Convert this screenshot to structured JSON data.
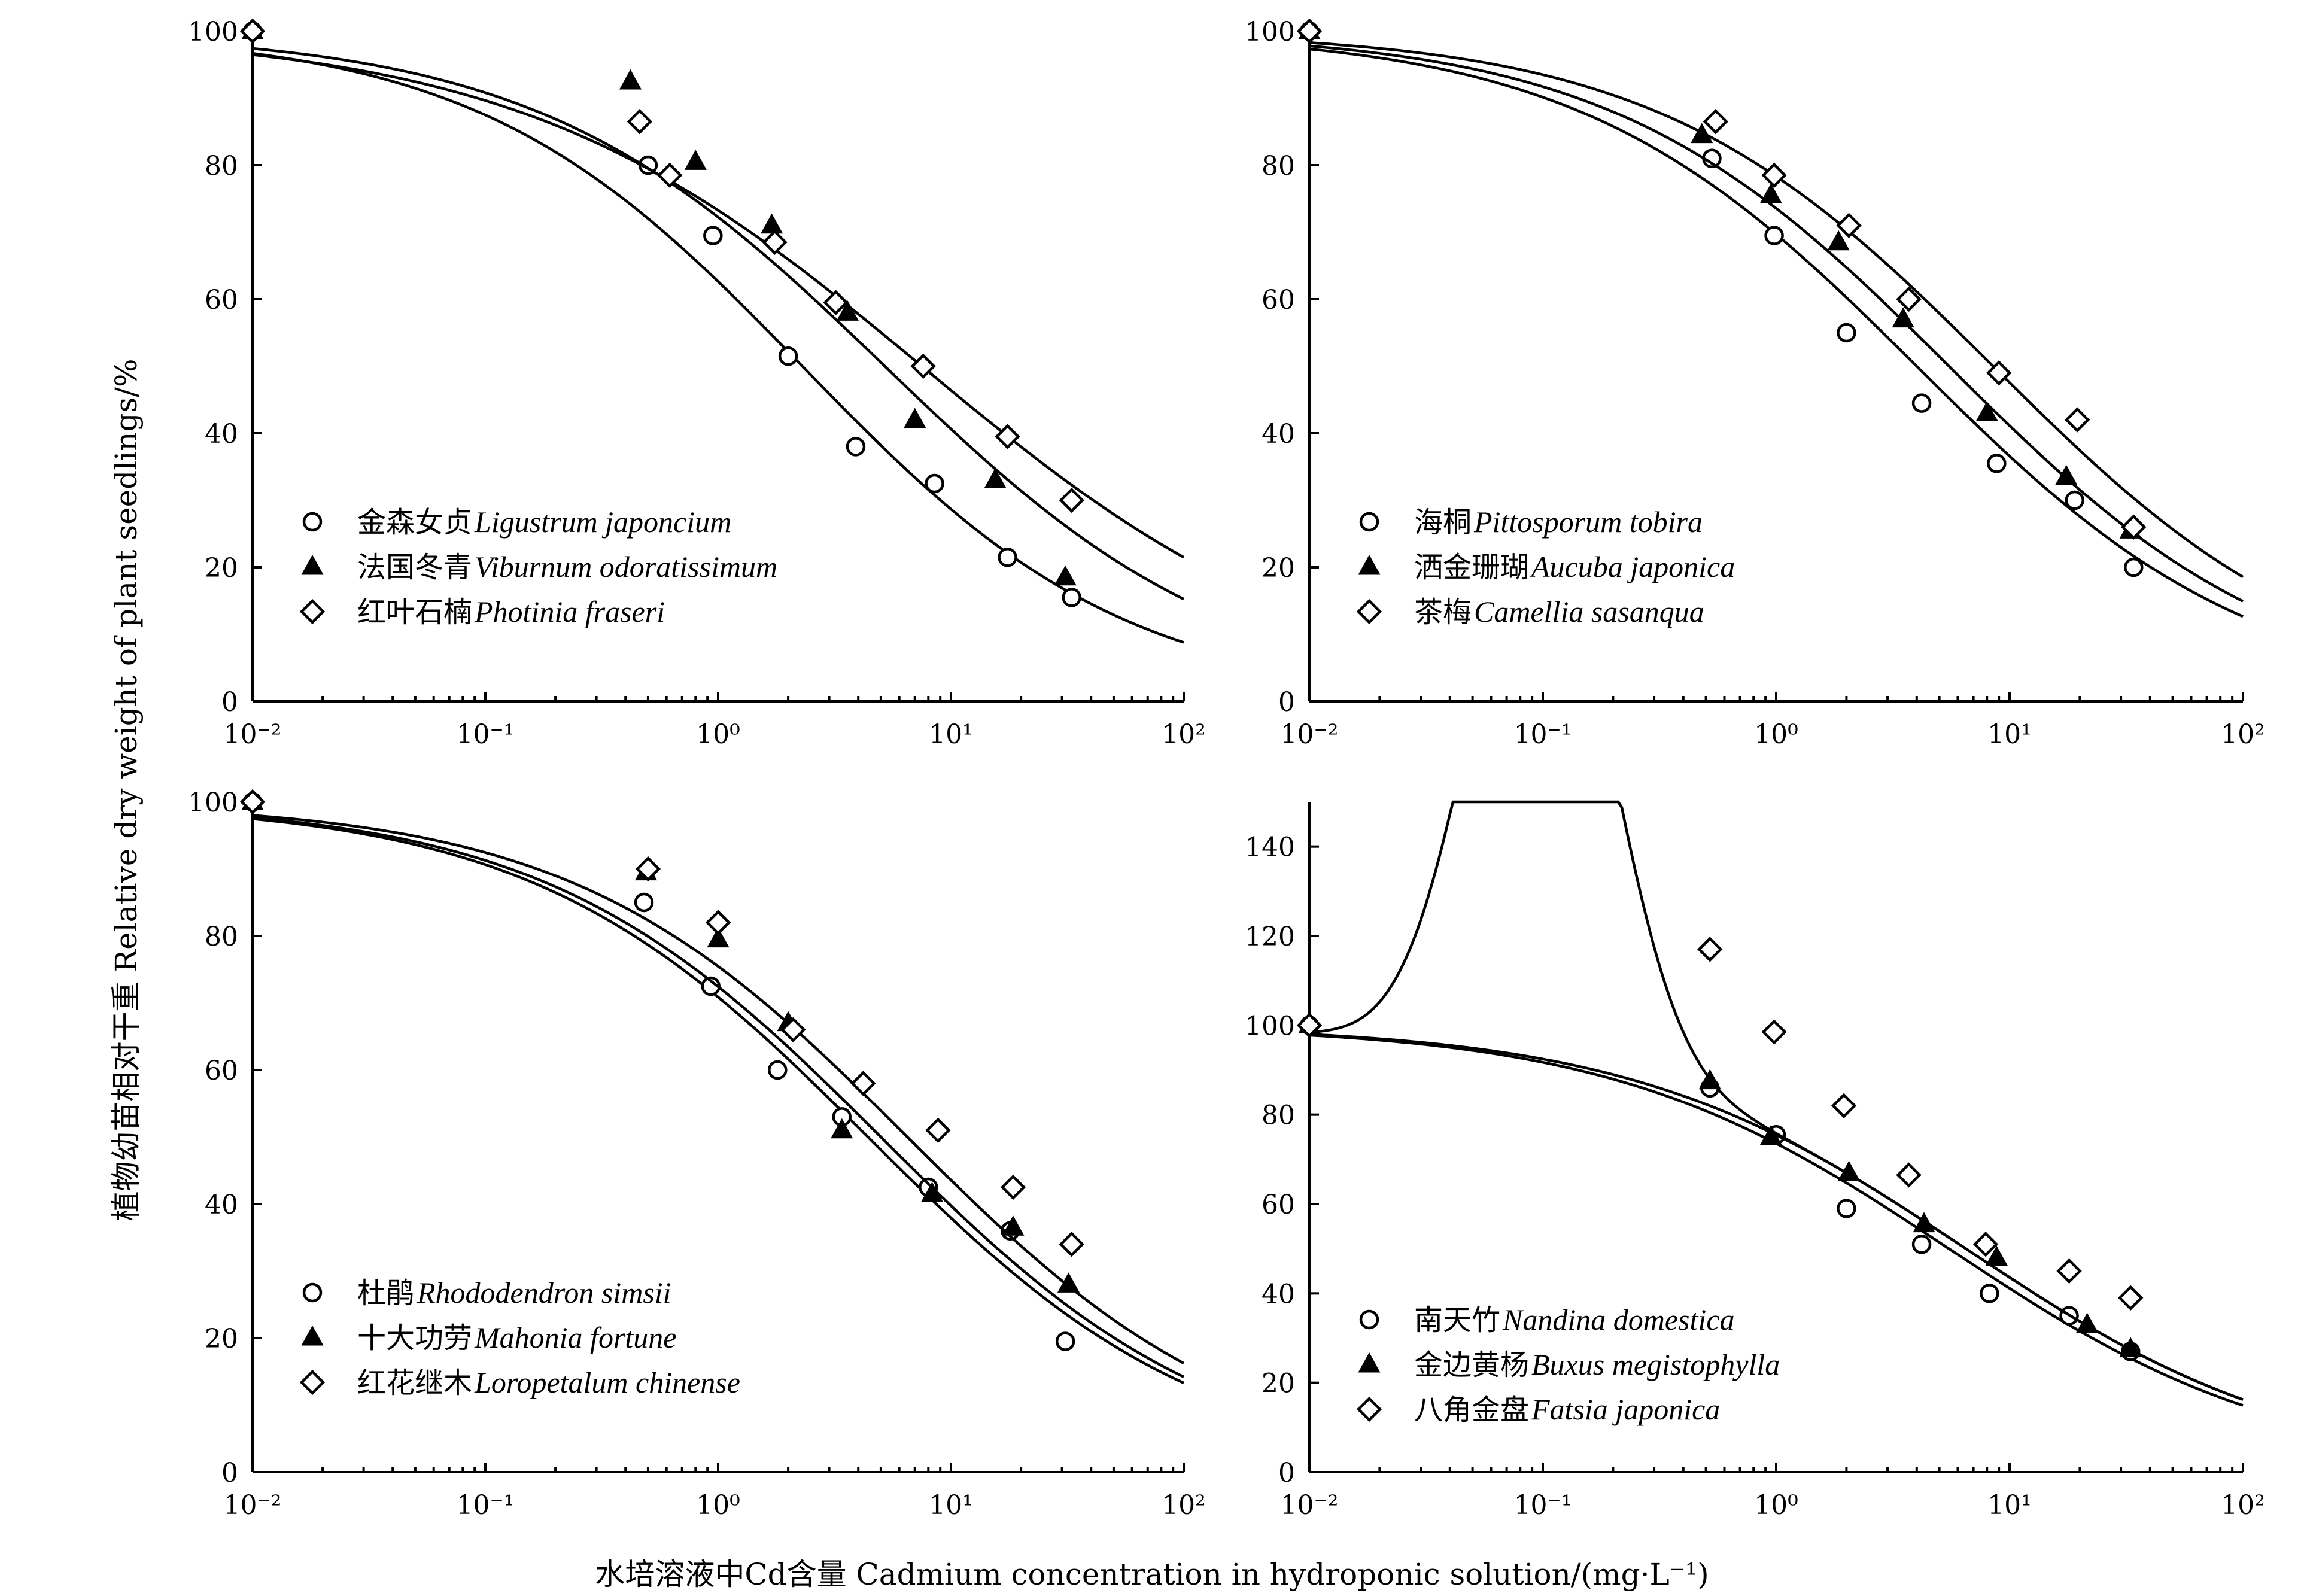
{
  "figure": {
    "ylabel_cn": "植物幼苗相对干重",
    "ylabel_en": "Relative dry weight of plant seedlings/%",
    "xlabel_cn": "水培溶液中Cd含量",
    "xlabel_en": "Cadmium concentration in hydroponic solution/(mg·L⁻¹)"
  },
  "chart_data": [
    {
      "type": "scatter",
      "panel": "top-left",
      "x_scale": "log",
      "xlim": [
        0.01,
        100
      ],
      "ylim": [
        0,
        100
      ],
      "x_ticks": [
        0.01,
        0.1,
        1,
        10,
        100
      ],
      "x_tick_labels": [
        "10⁻²",
        "10⁻¹",
        "10⁰",
        "10¹",
        "10²"
      ],
      "y_ticks": [
        0,
        20,
        40,
        60,
        80,
        100
      ],
      "y_tick_labels": [
        "0",
        "20",
        "40",
        "60",
        "80",
        "100"
      ],
      "legend_position": "bottom-left",
      "series": [
        {
          "name_cn": "金森女贞",
          "name_la": "Ligustrum japoncium",
          "marker": "circle",
          "x": [
            0.01,
            0.5,
            0.95,
            2.0,
            3.9,
            8.5,
            17.5,
            33
          ],
          "y": [
            100,
            80,
            69.5,
            51.5,
            38,
            32.5,
            21.5,
            15.5
          ],
          "fit": {
            "kind": "log-logistic",
            "x50": 2.3,
            "slope": 0.62
          }
        },
        {
          "name_cn": "法国冬青",
          "name_la": "Viburnum odoratissimum",
          "marker": "triangle",
          "x": [
            0.01,
            0.42,
            0.8,
            1.7,
            3.6,
            7.0,
            15.5,
            31
          ],
          "y": [
            100,
            92.5,
            80.5,
            71,
            58,
            42,
            33,
            18.5
          ],
          "fit": {
            "kind": "log-logistic",
            "x50": 5.2,
            "slope": 0.58
          }
        },
        {
          "name_cn": "红叶石楠",
          "name_la": "Photinia fraseri",
          "marker": "diamond",
          "x": [
            0.01,
            0.46,
            0.62,
            1.75,
            3.2,
            7.6,
            17.5,
            33
          ],
          "y": [
            100,
            86.5,
            78.5,
            68.5,
            59.5,
            50,
            39.5,
            30
          ],
          "fit": {
            "kind": "log-logistic",
            "x50": 7.5,
            "slope": 0.5
          }
        }
      ]
    },
    {
      "type": "scatter",
      "panel": "top-right",
      "x_scale": "log",
      "xlim": [
        0.01,
        100
      ],
      "ylim": [
        0,
        100
      ],
      "x_ticks": [
        0.01,
        0.1,
        1,
        10,
        100
      ],
      "x_tick_labels": [
        "10⁻²",
        "10⁻¹",
        "10⁰",
        "10¹",
        "10²"
      ],
      "y_ticks": [
        0,
        20,
        40,
        60,
        80,
        100
      ],
      "y_tick_labels": [
        "0",
        "20",
        "40",
        "60",
        "80",
        "100"
      ],
      "legend_position": "bottom-left",
      "series": [
        {
          "name_cn": "海桐",
          "name_la": "Pittosporum tobira",
          "marker": "circle",
          "x": [
            0.01,
            0.53,
            0.98,
            2.0,
            4.2,
            8.8,
            19,
            34
          ],
          "y": [
            100,
            81,
            69.5,
            55,
            44.5,
            35.5,
            30,
            20
          ],
          "fit": {
            "kind": "log-logistic",
            "x50": 4.0,
            "slope": 0.6
          }
        },
        {
          "name_cn": "洒金珊瑚",
          "name_la": "Aucuba japonica",
          "marker": "triangle",
          "x": [
            0.01,
            0.48,
            0.95,
            1.85,
            3.5,
            8.0,
            17.5,
            33
          ],
          "y": [
            100,
            84.5,
            75.5,
            68.5,
            57,
            43,
            33.5,
            25.5
          ],
          "fit": {
            "kind": "log-logistic",
            "x50": 5.5,
            "slope": 0.6
          }
        },
        {
          "name_cn": "茶梅",
          "name_la": "Camellia sasanqua",
          "marker": "diamond",
          "x": [
            0.01,
            0.55,
            0.98,
            2.05,
            3.7,
            9.0,
            19.5,
            34
          ],
          "y": [
            100,
            86.5,
            78.5,
            71,
            60,
            49,
            42,
            26
          ],
          "fit": {
            "kind": "log-logistic",
            "x50": 8.5,
            "slope": 0.6
          }
        }
      ]
    },
    {
      "type": "scatter",
      "panel": "bottom-left",
      "x_scale": "log",
      "xlim": [
        0.01,
        100
      ],
      "ylim": [
        0,
        100
      ],
      "x_ticks": [
        0.01,
        0.1,
        1,
        10,
        100
      ],
      "x_tick_labels": [
        "10⁻²",
        "10⁻¹",
        "10⁰",
        "10¹",
        "10²"
      ],
      "y_ticks": [
        0,
        20,
        40,
        60,
        80,
        100
      ],
      "y_tick_labels": [
        "0",
        "20",
        "40",
        "60",
        "80",
        "100"
      ],
      "legend_position": "bottom-left",
      "series": [
        {
          "name_cn": "杜鹃",
          "name_la": "Rhododendron simsii",
          "marker": "circle",
          "x": [
            0.01,
            0.48,
            0.93,
            1.8,
            3.4,
            8.0,
            18,
            31
          ],
          "y": [
            100,
            85,
            72.5,
            60,
            53,
            42.5,
            36,
            19.5
          ],
          "fit": {
            "kind": "log-logistic",
            "x50": 4.4,
            "slope": 0.6
          }
        },
        {
          "name_cn": "十大功劳",
          "name_la": "Mahonia fortune",
          "marker": "triangle",
          "x": [
            0.01,
            0.49,
            1.0,
            2.0,
            3.4,
            8.3,
            18.5,
            32
          ],
          "y": [
            100,
            89.5,
            79.5,
            67,
            51,
            41.5,
            36.5,
            28
          ],
          "fit": {
            "kind": "log-logistic",
            "x50": 5.0,
            "slope": 0.6
          }
        },
        {
          "name_cn": "红花继木",
          "name_la": "Loropetalum chinense",
          "marker": "diamond",
          "x": [
            0.01,
            0.5,
            1.0,
            2.1,
            4.2,
            8.8,
            18.5,
            33
          ],
          "y": [
            100,
            90,
            82,
            66,
            58,
            51,
            42.5,
            34
          ],
          "fit": {
            "kind": "log-logistic",
            "x50": 6.5,
            "slope": 0.6
          }
        }
      ]
    },
    {
      "type": "scatter",
      "panel": "bottom-right",
      "x_scale": "log",
      "xlim": [
        0.01,
        100
      ],
      "ylim": [
        0,
        150
      ],
      "x_ticks": [
        0.01,
        0.1,
        1,
        10,
        100
      ],
      "x_tick_labels": [
        "10⁻²",
        "10⁻¹",
        "10⁰",
        "10¹",
        "10²"
      ],
      "y_ticks": [
        0,
        20,
        40,
        60,
        80,
        100,
        120,
        140
      ],
      "y_tick_labels": [
        "0",
        "20",
        "40",
        "60",
        "80",
        "100",
        "120",
        "140"
      ],
      "legend_position": "bottom-left",
      "series": [
        {
          "name_cn": "南天竹",
          "name_la": "Nandina domestica",
          "marker": "circle",
          "x": [
            0.01,
            0.52,
            1.0,
            2.0,
            4.2,
            8.2,
            18,
            33
          ],
          "y": [
            100,
            86,
            75.5,
            59,
            51,
            40,
            35,
            27
          ],
          "fit": {
            "kind": "log-logistic",
            "x50": 5.5,
            "slope": 0.6
          }
        },
        {
          "name_cn": "金边黄杨",
          "name_la": "Buxus megistophylla",
          "marker": "triangle",
          "x": [
            0.01,
            0.52,
            0.95,
            2.05,
            4.3,
            8.8,
            21.5,
            33
          ],
          "y": [
            100,
            87.5,
            75,
            67,
            55.5,
            48,
            33,
            27.5
          ],
          "fit": {
            "kind": "log-logistic",
            "x50": 6.5,
            "slope": 0.6
          }
        },
        {
          "name_cn": "八角金盘",
          "name_la": "Fatsia japonica",
          "marker": "diamond",
          "x": [
            0.01,
            0.52,
            0.98,
            1.95,
            3.7,
            7.9,
            18,
            33
          ],
          "y": [
            100,
            117,
            98.5,
            82,
            66.5,
            51,
            45,
            39
          ],
          "fit": {
            "kind": "hormesis",
            "peak_x": 0.1,
            "peak_y": 143
          }
        }
      ]
    }
  ]
}
